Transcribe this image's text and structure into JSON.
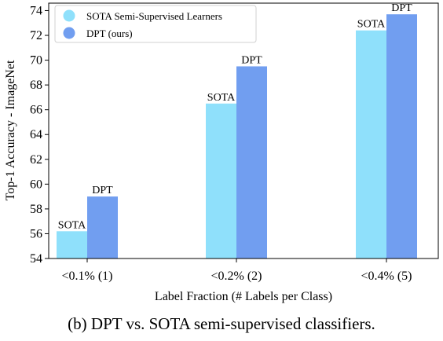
{
  "chart_data": {
    "type": "bar",
    "categories": [
      "<0.1% (1)",
      "<0.2% (2)",
      "<0.4% (5)"
    ],
    "series": [
      {
        "name": "SOTA Semi-Supervised Learners",
        "bar_label": "SOTA",
        "color": "#8fe0fb",
        "values": [
          56.2,
          66.5,
          72.4
        ]
      },
      {
        "name": "DPT (ours)",
        "bar_label": "DPT",
        "color": "#719ef0",
        "values": [
          59.0,
          69.5,
          73.7
        ]
      }
    ],
    "xlabel": "Label Fraction (# Labels per Class)",
    "ylabel": "Top-1 Accuracy - ImageNet",
    "ylim": [
      54,
      74.6
    ],
    "yticks": [
      54,
      56,
      58,
      60,
      62,
      64,
      66,
      68,
      70,
      72,
      74
    ],
    "legend_position": "top-left",
    "grid": false
  },
  "caption": "(b) DPT vs. SOTA semi-supervised classifiers."
}
